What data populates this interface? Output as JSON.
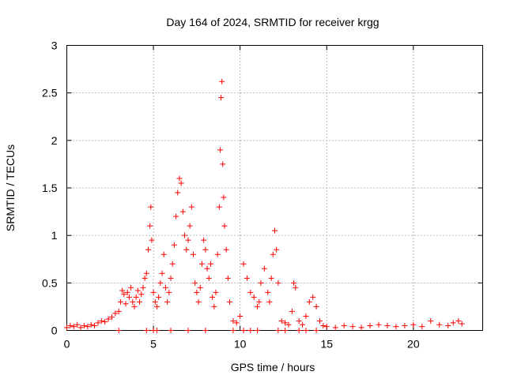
{
  "chart_data": {
    "type": "scatter",
    "title": "Day 164 of 2024, SRMTID for receiver krgg",
    "xlabel": "GPS time / hours",
    "ylabel": "SRMTID / TECUs",
    "xlim": [
      0,
      24
    ],
    "ylim": [
      0,
      3
    ],
    "xticks": [
      "0",
      "5",
      "10",
      "15",
      "20"
    ],
    "yticks": [
      "0",
      "0.5",
      "1",
      "1.5",
      "2",
      "2.5",
      "3"
    ],
    "grid": true,
    "marker": "plus",
    "series": [
      {
        "name": "SRMTID",
        "color": "#ff0000",
        "x": [
          0.0,
          0.2,
          0.4,
          0.6,
          0.8,
          1.0,
          1.2,
          1.4,
          1.6,
          1.8,
          2.0,
          2.2,
          2.4,
          2.6,
          2.8,
          3.0,
          3.1,
          3.2,
          3.3,
          3.4,
          3.5,
          3.6,
          3.7,
          3.8,
          3.9,
          4.0,
          4.1,
          4.2,
          4.3,
          4.4,
          4.5,
          4.6,
          4.7,
          4.8,
          4.85,
          4.9,
          5.0,
          5.1,
          5.2,
          5.3,
          5.4,
          5.5,
          5.6,
          5.7,
          5.8,
          5.9,
          6.0,
          6.1,
          6.2,
          6.3,
          6.4,
          6.5,
          6.6,
          6.7,
          6.8,
          6.9,
          7.0,
          7.1,
          7.2,
          7.3,
          7.4,
          7.5,
          7.6,
          7.7,
          7.8,
          7.9,
          8.0,
          8.1,
          8.2,
          8.3,
          8.4,
          8.5,
          8.6,
          8.7,
          8.8,
          8.85,
          8.9,
          8.95,
          9.0,
          9.05,
          9.1,
          9.2,
          9.3,
          9.4,
          9.6,
          9.8,
          10.0,
          10.2,
          10.4,
          10.6,
          10.8,
          11.0,
          11.1,
          11.2,
          11.4,
          11.6,
          11.7,
          11.8,
          11.9,
          12.0,
          12.1,
          12.2,
          12.4,
          12.6,
          12.8,
          13.0,
          13.1,
          13.2,
          13.4,
          13.6,
          13.8,
          14.0,
          14.2,
          14.4,
          14.6,
          14.8,
          15.0,
          15.5,
          16.0,
          16.5,
          17.0,
          17.5,
          18.0,
          18.5,
          19.0,
          19.5,
          20.0,
          20.5,
          21.0,
          21.5,
          22.0,
          22.3,
          22.6,
          22.8,
          3.0,
          4.6,
          5.0,
          5.2,
          6.0,
          7.0,
          8.0,
          9.6,
          10.2,
          10.6,
          11.0,
          12.2,
          12.6,
          13.4,
          13.8,
          14.4
        ],
        "y": [
          0.03,
          0.05,
          0.04,
          0.06,
          0.03,
          0.05,
          0.04,
          0.06,
          0.05,
          0.08,
          0.1,
          0.09,
          0.12,
          0.14,
          0.18,
          0.2,
          0.3,
          0.42,
          0.38,
          0.28,
          0.4,
          0.35,
          0.45,
          0.3,
          0.25,
          0.35,
          0.42,
          0.3,
          0.38,
          0.45,
          0.55,
          0.6,
          0.85,
          1.1,
          1.3,
          0.95,
          0.4,
          0.3,
          0.25,
          0.35,
          0.5,
          0.6,
          0.8,
          0.45,
          0.3,
          0.4,
          0.55,
          0.7,
          0.9,
          1.2,
          1.45,
          1.6,
          1.55,
          1.25,
          1.0,
          0.85,
          0.95,
          1.1,
          1.3,
          0.8,
          0.5,
          0.4,
          0.3,
          0.45,
          0.7,
          0.95,
          0.85,
          0.65,
          0.55,
          0.7,
          0.35,
          0.25,
          0.4,
          0.8,
          1.3,
          1.9,
          2.45,
          2.62,
          1.75,
          1.4,
          1.1,
          0.85,
          0.55,
          0.3,
          0.1,
          0.08,
          0.15,
          0.7,
          0.55,
          0.4,
          0.35,
          0.25,
          0.3,
          0.5,
          0.65,
          0.4,
          0.3,
          0.55,
          0.8,
          1.05,
          0.85,
          0.5,
          0.1,
          0.08,
          0.06,
          0.2,
          0.5,
          0.45,
          0.1,
          0.06,
          0.15,
          0.3,
          0.35,
          0.25,
          0.1,
          0.05,
          0.04,
          0.03,
          0.05,
          0.04,
          0.03,
          0.05,
          0.06,
          0.05,
          0.04,
          0.05,
          0.06,
          0.04,
          0.1,
          0.06,
          0.05,
          0.08,
          0.1,
          0.07,
          0.0,
          0.0,
          0.0,
          0.0,
          0.0,
          0.0,
          0.0,
          0.0,
          0.0,
          0.0,
          0.0,
          0.0,
          0.0,
          0.0,
          0.0,
          0.0
        ]
      }
    ]
  }
}
